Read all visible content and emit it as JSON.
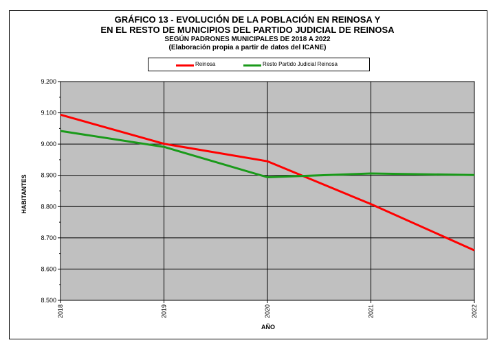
{
  "chart_data": {
    "type": "line",
    "title": "GRÁFICO 13 - EVOLUCIÓN DE LA POBLACIÓN EN REINOSA Y",
    "title_line2": "EN EL RESTO DE MUNICIPIOS DEL PARTIDO JUDICIAL DE REINOSA",
    "subtitle": "SEGÚN PADRONES MUNICIPALES DE 2018 A 2022",
    "subtitle2": "(Elaboración propia a partir de datos del ICANE)",
    "xlabel": "AÑO",
    "ylabel": "HABITANTES",
    "categories": [
      "2018",
      "2019",
      "2020",
      "2021",
      "2022"
    ],
    "ylim": [
      8500,
      9200
    ],
    "yticks": [
      8500,
      8600,
      8700,
      8800,
      8900,
      9000,
      9100,
      9200
    ],
    "ytick_labels": [
      "8.500",
      "8.600",
      "8.700",
      "8.800",
      "8.900",
      "9.000",
      "9.100",
      "9.200"
    ],
    "grid": true,
    "legend_position": "top",
    "plot_background": "#c0c0c0",
    "series": [
      {
        "name": "Reinosa",
        "color": "#ff0000",
        "values": [
          9094,
          9001,
          8945,
          8808,
          8660
        ]
      },
      {
        "name": "Resto Partido Judicial Reinosa",
        "color": "#1a9a1a",
        "values": [
          9042,
          8991,
          8894,
          8906,
          8901
        ]
      }
    ]
  }
}
